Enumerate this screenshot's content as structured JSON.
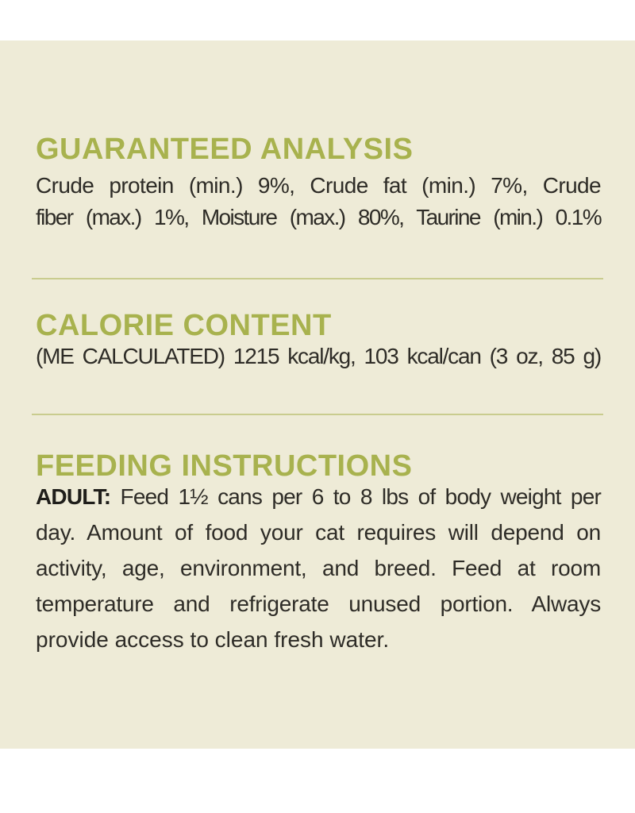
{
  "panel": {
    "background_color": "#eeebd7",
    "heading_color": "#a8b24e",
    "body_color": "#2e2c27",
    "divider_color": "#c9cc8e"
  },
  "guaranteed_analysis": {
    "heading": "GUARANTEED ANALYSIS",
    "line1": "Crude protein (min.) 9%, Crude fat (min.) 7%, Crude",
    "line2": "fiber (max.) 1%, Moisture (max.) 80%, Taurine (min.) 0.1%"
  },
  "calorie_content": {
    "heading": "CALORIE CONTENT",
    "line1": "(ME CALCULATED) 1215 kcal/kg, 103 kcal/can (3 oz, 85 g)"
  },
  "feeding_instructions": {
    "heading": "FEEDING INSTRUCTIONS",
    "adult_label": "ADULT:",
    "line1_rest": " Feed 1½ cans per 6 to 8 lbs of body weight per",
    "line2": "day. Amount of food your cat requires will depend on",
    "line3": "activity, age, environment, and breed. Feed at room",
    "line4": "temperature and refrigerate unused portion. Always",
    "line5": "provide access to clean fresh water."
  }
}
